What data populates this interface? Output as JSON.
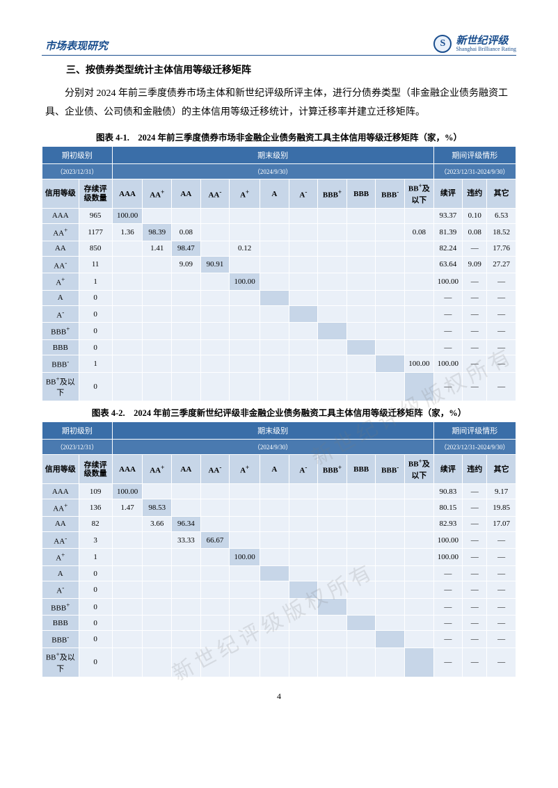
{
  "header": {
    "left": "市场表现研究",
    "logo_cn": "新世纪评级",
    "logo_en": "Shanghai Brilliance Rating"
  },
  "section_title": "三、按债券类型统计主体信用等级迁移矩阵",
  "body_paragraph": "分别对 2024 年前三季度债券市场主体和新世纪评级所评主体，进行分债券类型（非金融企业债务融资工具、企业债、公司债和金融债）的主体信用等级迁移统计，计算迁移率并建立迁移矩阵。",
  "table_common": {
    "head_initial": "期初级别",
    "head_initial_date": "（2023/12/31）",
    "head_end": "期末级别",
    "head_end_date": "（2024/9/30）",
    "head_period": "期间评级情形",
    "head_period_date": "（2023/12/31-2024/9/30）",
    "row_labels": [
      "信用等级",
      "存续评级数量",
      "AAA",
      "AA<sup>+</sup>",
      "AA",
      "AA<sup>-</sup>",
      "A<sup>+</sup>",
      "A",
      "A<sup>-</sup>",
      "BBB<sup>+</sup>",
      "BBB",
      "BBB<sup>-</sup>",
      "BB<sup>+</sup>及以下",
      "续评",
      "违约",
      "其它"
    ],
    "grade_labels": [
      "AAA",
      "AA<sup>+</sup>",
      "AA",
      "AA<sup>-</sup>",
      "A<sup>+</sup>",
      "A",
      "A<sup>-</sup>",
      "BBB<sup>+</sup>",
      "BBB",
      "BBB<sup>-</sup>",
      "BB<sup>+</sup>及以下"
    ]
  },
  "table1": {
    "title": "图表 4-1.　2024 年前三季度债券市场非金融企业债务融资工具主体信用等级迁移矩阵（家，%）",
    "rows": [
      {
        "grade": "AAA",
        "count": "965",
        "matrix": [
          "100.00",
          "",
          "",
          "",
          "",
          "",
          "",
          "",
          "",
          "",
          ""
        ],
        "period": [
          "93.37",
          "0.10",
          "6.53"
        ]
      },
      {
        "grade": "AA<sup>+</sup>",
        "count": "1177",
        "matrix": [
          "1.36",
          "98.39",
          "0.08",
          "",
          "",
          "",
          "",
          "",
          "",
          "",
          "0.08"
        ],
        "period": [
          "81.39",
          "0.08",
          "18.52"
        ]
      },
      {
        "grade": "AA",
        "count": "850",
        "matrix": [
          "",
          "1.41",
          "98.47",
          "",
          "0.12",
          "",
          "",
          "",
          "",
          "",
          ""
        ],
        "period": [
          "82.24",
          "—",
          "17.76"
        ]
      },
      {
        "grade": "AA<sup>-</sup>",
        "count": "11",
        "matrix": [
          "",
          "",
          "9.09",
          "90.91",
          "",
          "",
          "",
          "",
          "",
          "",
          ""
        ],
        "period": [
          "63.64",
          "9.09",
          "27.27"
        ]
      },
      {
        "grade": "A<sup>+</sup>",
        "count": "1",
        "matrix": [
          "",
          "",
          "",
          "",
          "100.00",
          "",
          "",
          "",
          "",
          "",
          ""
        ],
        "period": [
          "100.00",
          "—",
          "—"
        ]
      },
      {
        "grade": "A",
        "count": "0",
        "matrix": [
          "",
          "",
          "",
          "",
          "",
          "",
          "",
          "",
          "",
          "",
          ""
        ],
        "period": [
          "—",
          "—",
          "—"
        ]
      },
      {
        "grade": "A<sup>-</sup>",
        "count": "0",
        "matrix": [
          "",
          "",
          "",
          "",
          "",
          "",
          "",
          "",
          "",
          "",
          ""
        ],
        "period": [
          "—",
          "—",
          "—"
        ]
      },
      {
        "grade": "BBB<sup>+</sup>",
        "count": "0",
        "matrix": [
          "",
          "",
          "",
          "",
          "",
          "",
          "",
          "",
          "",
          "",
          ""
        ],
        "period": [
          "—",
          "—",
          "—"
        ]
      },
      {
        "grade": "BBB",
        "count": "0",
        "matrix": [
          "",
          "",
          "",
          "",
          "",
          "",
          "",
          "",
          "",
          "",
          ""
        ],
        "period": [
          "—",
          "—",
          "—"
        ]
      },
      {
        "grade": "BBB<sup>-</sup>",
        "count": "1",
        "matrix": [
          "",
          "",
          "",
          "",
          "",
          "",
          "",
          "",
          "",
          "",
          "100.00"
        ],
        "period": [
          "100.00",
          "—",
          "—"
        ]
      },
      {
        "grade": "BB<sup>+</sup>及以下",
        "count": "0",
        "matrix": [
          "",
          "",
          "",
          "",
          "",
          "",
          "",
          "",
          "",
          "",
          ""
        ],
        "period": [
          "—",
          "—",
          "—"
        ]
      }
    ]
  },
  "table2": {
    "title": "图表 4-2.　2024 年前三季度新世纪评级非金融企业债务融资工具主体信用等级迁移矩阵（家，%）",
    "rows": [
      {
        "grade": "AAA",
        "count": "109",
        "matrix": [
          "100.00",
          "",
          "",
          "",
          "",
          "",
          "",
          "",
          "",
          "",
          ""
        ],
        "period": [
          "90.83",
          "—",
          "9.17"
        ]
      },
      {
        "grade": "AA<sup>+</sup>",
        "count": "136",
        "matrix": [
          "1.47",
          "98.53",
          "",
          "",
          "",
          "",
          "",
          "",
          "",
          "",
          ""
        ],
        "period": [
          "80.15",
          "—",
          "19.85"
        ]
      },
      {
        "grade": "AA",
        "count": "82",
        "matrix": [
          "",
          "3.66",
          "96.34",
          "",
          "",
          "",
          "",
          "",
          "",
          "",
          ""
        ],
        "period": [
          "82.93",
          "—",
          "17.07"
        ]
      },
      {
        "grade": "AA<sup>-</sup>",
        "count": "3",
        "matrix": [
          "",
          "",
          "33.33",
          "66.67",
          "",
          "",
          "",
          "",
          "",
          "",
          ""
        ],
        "period": [
          "100.00",
          "—",
          "—"
        ]
      },
      {
        "grade": "A<sup>+</sup>",
        "count": "1",
        "matrix": [
          "",
          "",
          "",
          "",
          "100.00",
          "",
          "",
          "",
          "",
          "",
          ""
        ],
        "period": [
          "100.00",
          "—",
          "—"
        ]
      },
      {
        "grade": "A",
        "count": "0",
        "matrix": [
          "",
          "",
          "",
          "",
          "",
          "",
          "",
          "",
          "",
          "",
          ""
        ],
        "period": [
          "—",
          "—",
          "—"
        ]
      },
      {
        "grade": "A<sup>-</sup>",
        "count": "0",
        "matrix": [
          "",
          "",
          "",
          "",
          "",
          "",
          "",
          "",
          "",
          "",
          ""
        ],
        "period": [
          "—",
          "—",
          "—"
        ]
      },
      {
        "grade": "BBB<sup>+</sup>",
        "count": "0",
        "matrix": [
          "",
          "",
          "",
          "",
          "",
          "",
          "",
          "",
          "",
          "",
          ""
        ],
        "period": [
          "—",
          "—",
          "—"
        ]
      },
      {
        "grade": "BBB",
        "count": "0",
        "matrix": [
          "",
          "",
          "",
          "",
          "",
          "",
          "",
          "",
          "",
          "",
          ""
        ],
        "period": [
          "—",
          "—",
          "—"
        ]
      },
      {
        "grade": "BBB<sup>-</sup>",
        "count": "0",
        "matrix": [
          "",
          "",
          "",
          "",
          "",
          "",
          "",
          "",
          "",
          "",
          ""
        ],
        "period": [
          "—",
          "—",
          "—"
        ]
      },
      {
        "grade": "BB<sup>+</sup>及以下",
        "count": "0",
        "matrix": [
          "",
          "",
          "",
          "",
          "",
          "",
          "",
          "",
          "",
          "",
          ""
        ],
        "period": [
          "—",
          "—",
          "—"
        ]
      }
    ]
  },
  "watermark_text": "新世纪评级版权所有",
  "page_number": "4",
  "colors": {
    "header_blue": "#1a4e8e",
    "th_dark": "#3a6ea8",
    "th_mid": "#4a7ab0",
    "cell_label": "#c7d6e8",
    "cell_data": "#eaf0f8"
  }
}
